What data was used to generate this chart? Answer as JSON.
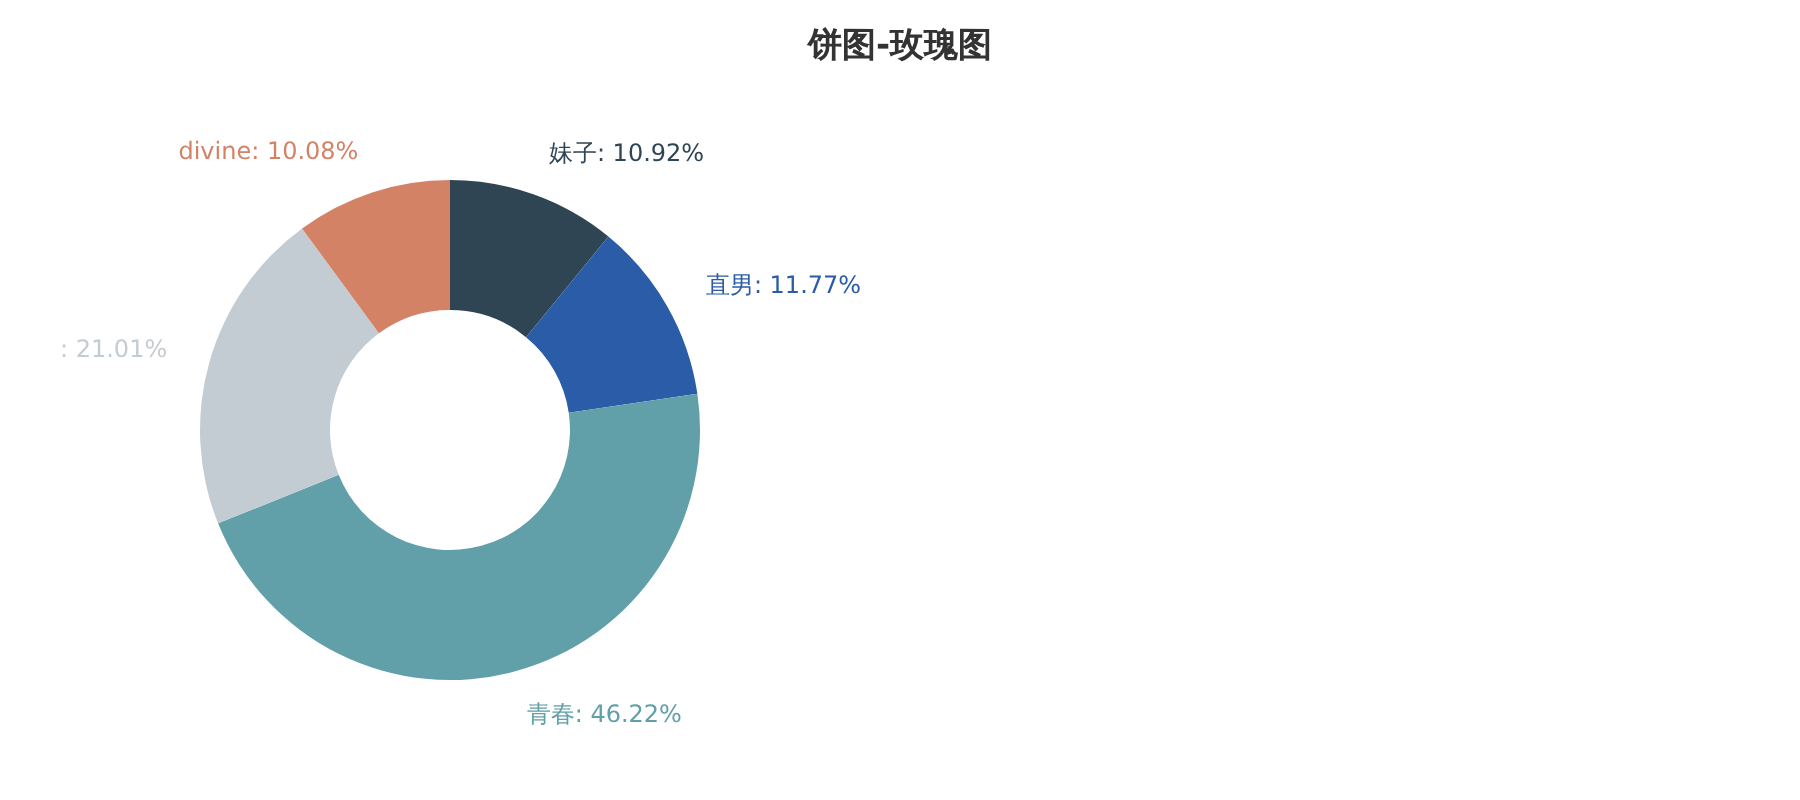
{
  "chart_data": {
    "type": "donut",
    "title": "饼图-玫瑰图",
    "categories": [
      "妹子",
      "直男",
      "青春",
      null,
      "divine"
    ],
    "values": [
      10.92,
      11.77,
      46.22,
      21.01,
      10.08
    ],
    "colors": [
      "#2f4554",
      "#2b5ca8",
      "#61a0a8",
      "#c4ccd3",
      "#d48265"
    ],
    "value_labels": [
      ": 10.92%",
      ": 11.77%",
      ": 46.22%",
      ": 21.01%",
      ": 10.08%"
    ],
    "legend": false
  }
}
